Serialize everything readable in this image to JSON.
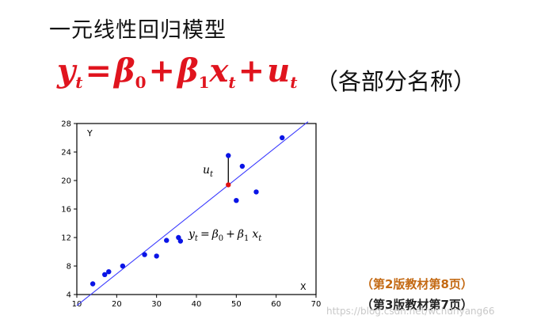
{
  "title": "一元线性回归模型",
  "formula": {
    "y": "y",
    "t1": "t",
    "eq": "=",
    "beta": "β",
    "zero": "0",
    "plus1": "+",
    "one": "1",
    "x": "x",
    "t2": "t",
    "plus2": "+",
    "u": "u",
    "t3": "t"
  },
  "note": "（各部分名称）",
  "references": [
    "（第2版教材第8页）",
    "（第3版教材第7页）"
  ],
  "watermark": "https://blog.csdn.net/wchunyang66",
  "chart_data": {
    "type": "scatter",
    "xlim": [
      10,
      70
    ],
    "ylim": [
      4,
      28
    ],
    "x_ticks": [
      "10",
      "20",
      "30",
      "40",
      "50",
      "60",
      "70"
    ],
    "y_ticks": [
      "4",
      "8",
      "12",
      "16",
      "20",
      "24",
      "28"
    ],
    "xlabel": "X",
    "ylabel": "Y",
    "grid": false,
    "points": [
      {
        "x": 14,
        "y": 5.5
      },
      {
        "x": 17,
        "y": 6.8
      },
      {
        "x": 18,
        "y": 7.2
      },
      {
        "x": 21.5,
        "y": 8.0
      },
      {
        "x": 27,
        "y": 9.6
      },
      {
        "x": 30,
        "y": 9.4
      },
      {
        "x": 32.5,
        "y": 11.6
      },
      {
        "x": 35.5,
        "y": 12.0
      },
      {
        "x": 36,
        "y": 11.5
      },
      {
        "x": 48,
        "y": 23.5
      },
      {
        "x": 50,
        "y": 17.2
      },
      {
        "x": 51.5,
        "y": 22.0
      },
      {
        "x": 55,
        "y": 18.4
      },
      {
        "x": 61.5,
        "y": 26.0
      }
    ],
    "highlight_point": {
      "x": 48,
      "y": 19.4
    },
    "regression_line": {
      "intercept": -2.0,
      "slope": 0.445,
      "x_range": [
        10,
        68
      ]
    },
    "residual_label": "u",
    "residual_sub": "t",
    "line_label": {
      "y": "y",
      "t1": "t",
      "eq": "=",
      "beta": "β",
      "zero": "0",
      "plus": "+",
      "one": "1",
      "x": "x",
      "t2": "t"
    },
    "colors": {
      "points": "#0a14e6",
      "line": "#3a3aff",
      "highlight": "#e01010",
      "axis": "#000000"
    }
  }
}
